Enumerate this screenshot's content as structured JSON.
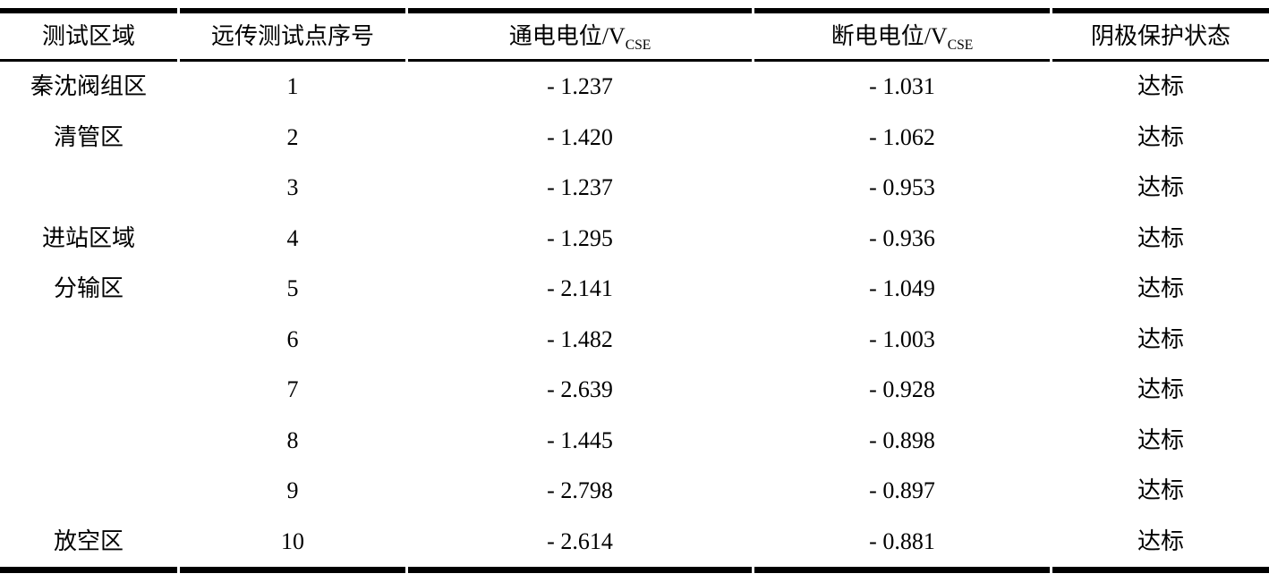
{
  "table": {
    "colors": {
      "text": "#000000",
      "rule": "#000000",
      "background": "#ffffff"
    },
    "headers": {
      "area": "测试区域",
      "point": "远传测试点序号",
      "on_potential": {
        "text": "通电电位/V",
        "sub": "CSE"
      },
      "off_potential": {
        "text": "断电电位/V",
        "sub": "CSE"
      },
      "status": "阴极保护状态"
    },
    "rows": [
      {
        "area": "秦沈阀组区",
        "point": "1",
        "on": "- 1.237",
        "off": "- 1.031",
        "status": "达标"
      },
      {
        "area": "清管区",
        "point": "2",
        "on": "- 1.420",
        "off": "- 1.062",
        "status": "达标"
      },
      {
        "area": "",
        "point": "3",
        "on": "- 1.237",
        "off": "- 0.953",
        "status": "达标"
      },
      {
        "area": "进站区域",
        "point": "4",
        "on": "- 1.295",
        "off": "- 0.936",
        "status": "达标"
      },
      {
        "area": "分输区",
        "point": "5",
        "on": "- 2.141",
        "off": "- 1.049",
        "status": "达标"
      },
      {
        "area": "",
        "point": "6",
        "on": "- 1.482",
        "off": "- 1.003",
        "status": "达标"
      },
      {
        "area": "",
        "point": "7",
        "on": "- 2.639",
        "off": "- 0.928",
        "status": "达标"
      },
      {
        "area": "",
        "point": "8",
        "on": "- 1.445",
        "off": "- 0.898",
        "status": "达标"
      },
      {
        "area": "",
        "point": "9",
        "on": "- 2.798",
        "off": "- 0.897",
        "status": "达标"
      },
      {
        "area": "放空区",
        "point": "10",
        "on": "- 2.614",
        "off": "- 0.881",
        "status": "达标"
      }
    ]
  }
}
